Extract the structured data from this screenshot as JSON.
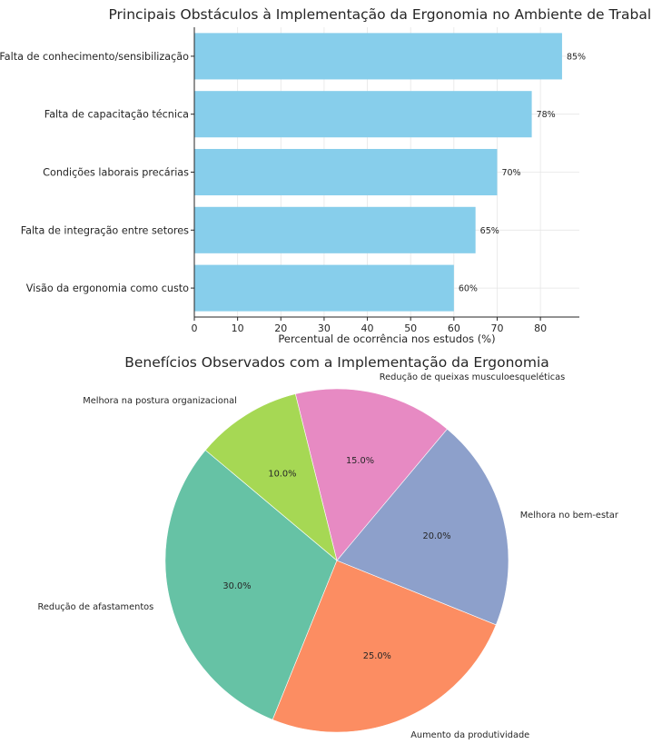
{
  "chart_data": [
    {
      "type": "bar",
      "orientation": "horizontal",
      "title": "Principais Obstáculos à Implementação da Ergonomia no Ambiente de Trabalho",
      "xlabel": "Percentual de ocorrência nos estudos (%)",
      "ylabel": "",
      "categories": [
        "Falta de conhecimento/sensibilização",
        "Falta de capacitação técnica",
        "Condições laborais precárias",
        "Falta de integração entre setores",
        "Visão da ergonomia como custo"
      ],
      "values": [
        85,
        78,
        70,
        65,
        60
      ],
      "data_labels": [
        "85%",
        "78%",
        "70%",
        "65%",
        "60%"
      ],
      "xlim": [
        0,
        89
      ],
      "xticks": [
        0,
        10,
        20,
        30,
        40,
        50,
        60,
        70,
        80
      ],
      "grid": true,
      "bar_color": "#87ceeb"
    },
    {
      "type": "pie",
      "title": "Benefícios Observados com a Implementação da Ergonomia",
      "start_angle_deg": 140,
      "direction": "counterclockwise",
      "slices": [
        {
          "label": "Redução de afastamentos",
          "value": 30.0,
          "pct_label": "30.0%",
          "color": "#66c2a5"
        },
        {
          "label": "Aumento da produtividade",
          "value": 25.0,
          "pct_label": "25.0%",
          "color": "#fc8d62"
        },
        {
          "label": "Melhora no bem-estar",
          "value": 20.0,
          "pct_label": "20.0%",
          "color": "#8da0cb"
        },
        {
          "label": "Redução de queixas musculoesqueléticas",
          "value": 15.0,
          "pct_label": "15.0%",
          "color": "#e78ac3"
        },
        {
          "label": "Melhora na postura organizacional",
          "value": 10.0,
          "pct_label": "10.0%",
          "color": "#a6d854"
        }
      ]
    }
  ]
}
